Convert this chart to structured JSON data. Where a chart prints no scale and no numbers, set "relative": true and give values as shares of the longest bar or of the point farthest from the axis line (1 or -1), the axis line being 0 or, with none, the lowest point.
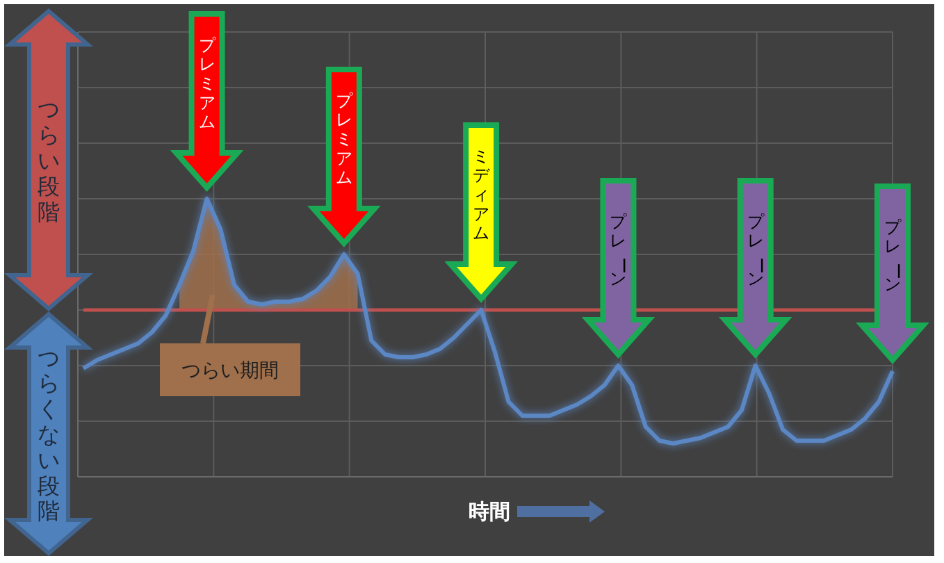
{
  "chart_data": {
    "type": "line",
    "relative": true,
    "grid": true,
    "xlabel": "時間",
    "categories": [
      null,
      null,
      null,
      null,
      null,
      null,
      null,
      null,
      null,
      null,
      null,
      null,
      null,
      null,
      null,
      null,
      null,
      null,
      null,
      null,
      null,
      null,
      null,
      null,
      null,
      null,
      null,
      null,
      null,
      null,
      null,
      null,
      null,
      null,
      null,
      null,
      null,
      null,
      null,
      null,
      null,
      null,
      null,
      null,
      null,
      null,
      null,
      null,
      null,
      null,
      null,
      null,
      null,
      null,
      null,
      null,
      null,
      null,
      null,
      null
    ],
    "series": [
      {
        "color": "#5b87c5",
        "values": [
          0.39,
          0.42,
          0.44,
          0.46,
          0.48,
          0.52,
          0.58,
          0.69,
          0.81,
          1,
          0.89,
          0.69,
          0.63,
          0.62,
          0.63,
          0.63,
          0.64,
          0.67,
          0.72,
          0.8,
          0.73,
          0.49,
          0.44,
          0.43,
          0.43,
          0.44,
          0.46,
          0.5,
          0.55,
          0.6,
          0.45,
          0.27,
          0.22,
          0.22,
          0.22,
          0.24,
          0.26,
          0.29,
          0.33,
          0.4,
          0.33,
          0.18,
          0.13,
          0.12,
          0.13,
          0.14,
          0.16,
          0.18,
          0.24,
          0.4,
          0.3,
          0.17,
          0.13,
          0.13,
          0.13,
          0.15,
          0.17,
          0.21,
          0.27,
          0.38
        ],
        "lower": [
          null,
          null,
          null,
          null,
          null,
          null,
          null,
          0.6,
          0.6,
          0.6,
          0.6,
          0.6,
          0.6,
          0.6,
          0.6,
          0.6,
          0.6,
          0.6,
          0.6,
          0.6,
          0.6,
          null,
          null,
          null,
          null,
          null,
          null,
          null,
          null,
          null,
          null,
          null,
          null,
          null,
          null,
          null,
          null,
          null,
          null,
          null,
          null,
          null,
          null,
          null,
          null,
          null,
          null,
          null,
          null,
          null,
          null,
          null,
          null,
          null,
          null,
          null,
          null,
          null,
          null,
          null
        ],
        "upper": [
          null,
          null,
          null,
          null,
          null,
          null,
          null,
          0.69,
          0.81,
          1,
          0.89,
          0.69,
          0.63,
          0.62,
          0.63,
          0.63,
          0.64,
          0.67,
          0.72,
          0.8,
          0.73,
          null,
          null,
          null,
          null,
          null,
          null,
          null,
          null,
          null,
          null,
          null,
          null,
          null,
          null,
          null,
          null,
          null,
          null,
          null,
          null,
          null,
          null,
          null,
          null,
          null,
          null,
          null,
          null,
          null,
          null,
          null,
          null,
          null,
          null,
          null,
          null,
          null,
          null,
          null
        ]
      }
    ],
    "ref_lines": [
      {
        "axis": "y",
        "value": 0.6,
        "color": "#c0504d"
      }
    ],
    "annotations": [
      "つらい段階",
      "つらくない段階",
      "つらい期間",
      "プレミアム",
      "プレミアム",
      "ミディアム",
      "プレーン",
      "プレーン",
      "プレーン"
    ]
  }
}
